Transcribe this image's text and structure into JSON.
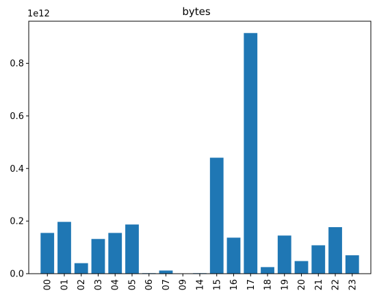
{
  "chart_data": {
    "type": "bar",
    "title": "bytes",
    "xlabel": "",
    "ylabel": "",
    "y_offset_label": "1e12",
    "y_scale": 1000000000000,
    "categories": [
      "00",
      "01",
      "02",
      "03",
      "04",
      "05",
      "06",
      "07",
      "09",
      "14",
      "15",
      "16",
      "17",
      "18",
      "19",
      "20",
      "21",
      "22",
      "23"
    ],
    "values": [
      155000000000,
      197000000000,
      40000000000,
      132000000000,
      155000000000,
      187000000000,
      2000000000,
      12000000000,
      500000000,
      2000000000,
      441000000000,
      137000000000,
      915000000000,
      25000000000,
      145000000000,
      48000000000,
      108000000000,
      177000000000,
      70000000000
    ],
    "ylim": [
      0,
      960000000000
    ],
    "yticks": [
      0,
      200000000000,
      400000000000,
      600000000000,
      800000000000
    ],
    "ytick_labels": [
      "0.0",
      "0.2",
      "0.4",
      "0.6",
      "0.8"
    ],
    "bar_color": "#1f77b4",
    "grid": false,
    "legend": "none"
  }
}
